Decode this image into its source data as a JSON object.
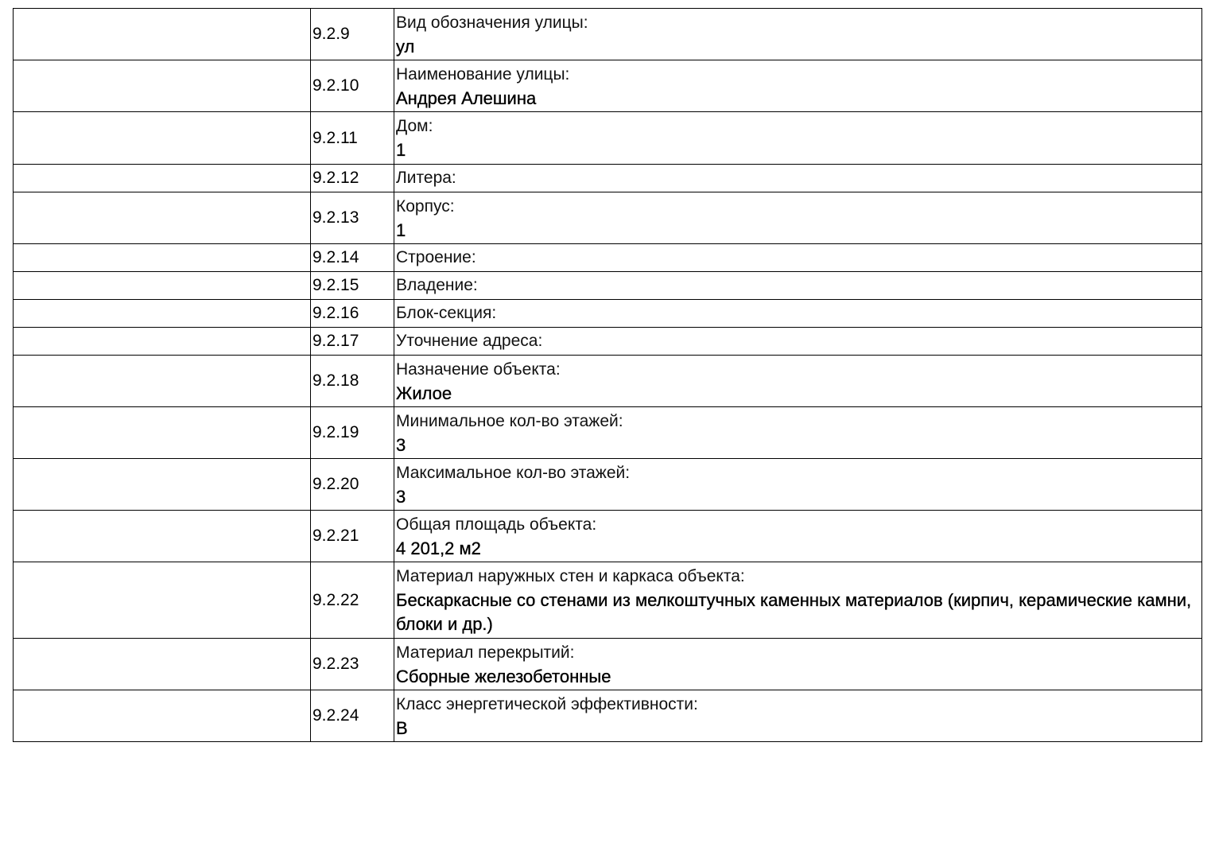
{
  "rows": [
    {
      "num": "9.2.9",
      "label": "Вид обозначения улицы:",
      "value": "ул"
    },
    {
      "num": "9.2.10",
      "label": "Наименование улицы:",
      "value": "Андрея Алешина"
    },
    {
      "num": "9.2.11",
      "label": "Дом:",
      "value": "1"
    },
    {
      "num": "9.2.12",
      "label": "Литера:",
      "value": ""
    },
    {
      "num": "9.2.13",
      "label": "Корпус:",
      "value": "1"
    },
    {
      "num": "9.2.14",
      "label": "Строение:",
      "value": ""
    },
    {
      "num": "9.2.15",
      "label": "Владение:",
      "value": ""
    },
    {
      "num": "9.2.16",
      "label": "Блок-секция:",
      "value": ""
    },
    {
      "num": "9.2.17",
      "label": "Уточнение адреса:",
      "value": ""
    },
    {
      "num": "9.2.18",
      "label": "Назначение объекта:",
      "value": "Жилое"
    },
    {
      "num": "9.2.19",
      "label": "Минимальное кол-во этажей:",
      "value": "3"
    },
    {
      "num": "9.2.20",
      "label": "Максимальное кол-во этажей:",
      "value": "3"
    },
    {
      "num": "9.2.21",
      "label": "Общая площадь объекта:",
      "value": "4 201,2 м2"
    },
    {
      "num": "9.2.22",
      "label": "Материал наружных стен и каркаса объекта:",
      "value": "Бескаркасные со стенами из мелкоштучных каменных материалов (кирпич, керамические камни, блоки и др.)"
    },
    {
      "num": "9.2.23",
      "label": "Материал перекрытий:",
      "value": "Сборные железобетонные"
    },
    {
      "num": "9.2.24",
      "label": "Класс энергетической эффективности:",
      "value": "B"
    }
  ]
}
